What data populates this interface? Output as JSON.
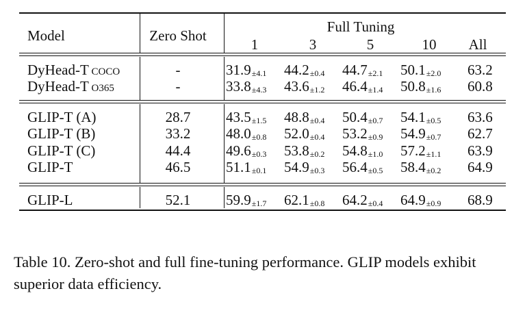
{
  "table": {
    "headers": {
      "model": "Model",
      "zero_shot": "Zero Shot",
      "full_tuning": "Full Tuning",
      "shots": [
        "1",
        "3",
        "5",
        "10",
        "All"
      ]
    },
    "groups": [
      [
        {
          "model": "DyHead-T",
          "model_suffix": "COCO",
          "zero": "-",
          "cells": [
            {
              "v": "31.9",
              "pm": "±4.1"
            },
            {
              "v": "44.2",
              "pm": "±0.4"
            },
            {
              "v": "44.7",
              "pm": "±2.1"
            },
            {
              "v": "50.1",
              "pm": "±2.0"
            },
            {
              "v": "63.2",
              "pm": ""
            }
          ]
        },
        {
          "model": "DyHead-T",
          "model_suffix": "O365",
          "zero": "-",
          "cells": [
            {
              "v": "33.8",
              "pm": "±4.3"
            },
            {
              "v": "43.6",
              "pm": "±1.2"
            },
            {
              "v": "46.4",
              "pm": "±1.4"
            },
            {
              "v": "50.8",
              "pm": "±1.6"
            },
            {
              "v": "60.8",
              "pm": ""
            }
          ]
        }
      ],
      [
        {
          "model": "GLIP-T (A)",
          "model_suffix": "",
          "zero": "28.7",
          "cells": [
            {
              "v": "43.5",
              "pm": "±1.5"
            },
            {
              "v": "48.8",
              "pm": "±0.4"
            },
            {
              "v": "50.4",
              "pm": "±0.7"
            },
            {
              "v": "54.1",
              "pm": "±0.5"
            },
            {
              "v": "63.6",
              "pm": ""
            }
          ]
        },
        {
          "model": "GLIP-T (B)",
          "model_suffix": "",
          "zero": "33.2",
          "cells": [
            {
              "v": "48.0",
              "pm": "±0.8"
            },
            {
              "v": "52.0",
              "pm": "±0.4"
            },
            {
              "v": "53.2",
              "pm": "±0.9"
            },
            {
              "v": "54.9",
              "pm": "±0.7"
            },
            {
              "v": "62.7",
              "pm": ""
            }
          ]
        },
        {
          "model": "GLIP-T (C)",
          "model_suffix": "",
          "zero": "44.4",
          "cells": [
            {
              "v": "49.6",
              "pm": "±0.3"
            },
            {
              "v": "53.8",
              "pm": "±0.2"
            },
            {
              "v": "54.8",
              "pm": "±1.0"
            },
            {
              "v": "57.2",
              "pm": "±1.1"
            },
            {
              "v": "63.9",
              "pm": ""
            }
          ]
        },
        {
          "model": "GLIP-T",
          "model_suffix": "",
          "zero": "46.5",
          "cells": [
            {
              "v": "51.1",
              "pm": "±0.1"
            },
            {
              "v": "54.9",
              "pm": "±0.3"
            },
            {
              "v": "56.4",
              "pm": "±0.5"
            },
            {
              "v": "58.4",
              "pm": "±0.2"
            },
            {
              "v": "64.9",
              "pm": ""
            }
          ]
        }
      ],
      [
        {
          "model": "GLIP-L",
          "model_suffix": "",
          "zero": "52.1",
          "cells": [
            {
              "v": "59.9",
              "pm": "±1.7"
            },
            {
              "v": "62.1",
              "pm": "±0.8"
            },
            {
              "v": "64.2",
              "pm": "±0.4"
            },
            {
              "v": "64.9",
              "pm": "±0.9"
            },
            {
              "v": "68.9",
              "pm": ""
            }
          ]
        }
      ]
    ]
  },
  "caption": "Table 10. Zero-shot and full fine-tuning performance. GLIP models exhibit superior data efficiency."
}
